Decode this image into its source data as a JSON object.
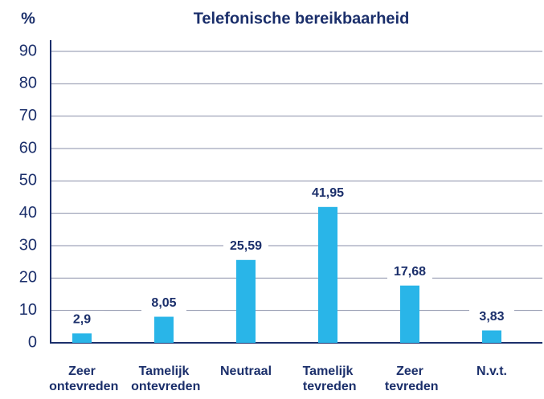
{
  "chart_data": {
    "type": "bar",
    "title": "Telefonische bereikbaarheid",
    "y_label": "%",
    "categories": [
      "Zeer ontevreden",
      "Tamelijk ontevreden",
      "Neutraal",
      "Tamelijk tevreden",
      "Zeer tevreden",
      "N.v.t."
    ],
    "values": [
      2.9,
      8.05,
      25.59,
      41.95,
      17.68,
      3.83
    ],
    "value_labels": [
      "2,9",
      "8,05",
      "25,59",
      "41,95",
      "17,68",
      "3,83"
    ],
    "color": "#29b5e8",
    "ylim": [
      0,
      90
    ],
    "yticks": [
      0,
      10,
      20,
      30,
      40,
      50,
      60,
      70,
      80,
      90
    ],
    "grid": true
  }
}
